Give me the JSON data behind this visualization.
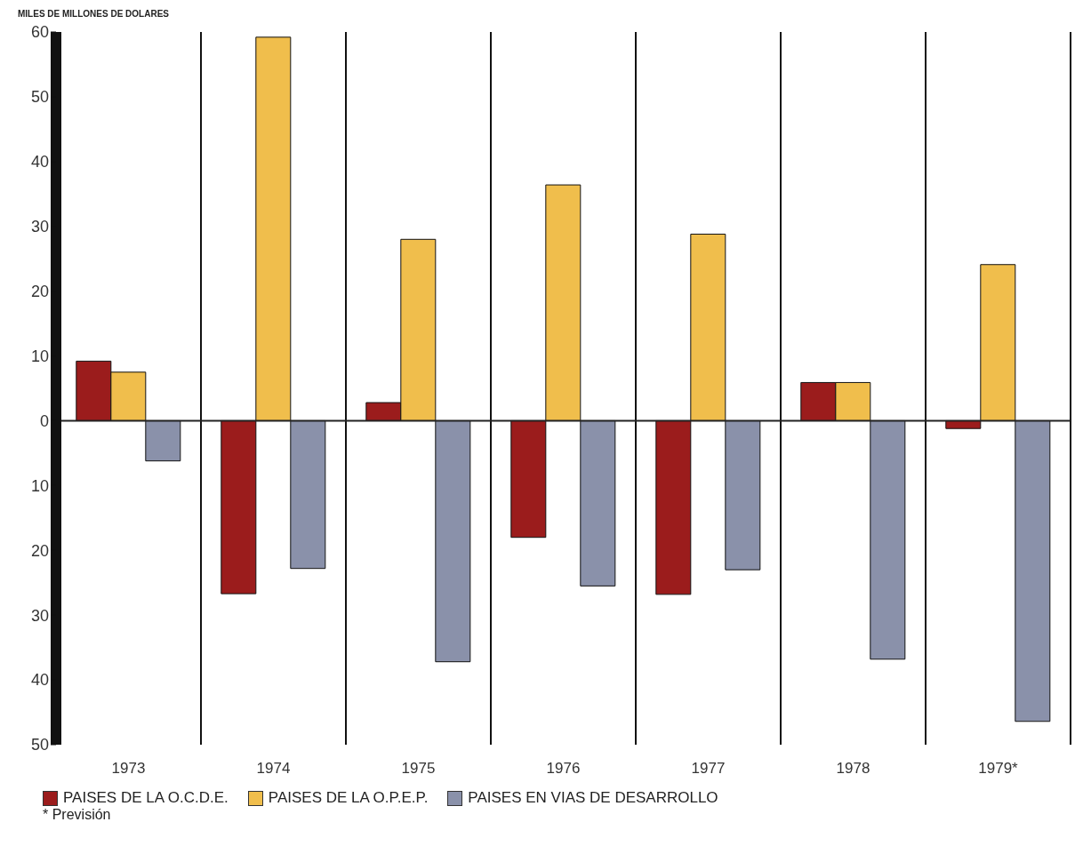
{
  "chart_data": {
    "type": "bar",
    "ylabel": "MILES DE MILLONES DE DOLARES",
    "categories": [
      "1973",
      "1974",
      "1975",
      "1976",
      "1977",
      "1978",
      "1979*"
    ],
    "series": [
      {
        "name": "PAISES DE LA O.C.D.E.",
        "color": "#9b1c1c",
        "values": [
          9.2,
          -26.7,
          2.8,
          -18,
          -26.8,
          5.9,
          -1.2
        ]
      },
      {
        "name": "PAISES DE LA O.P.E.P.",
        "color": "#f0be4c",
        "values": [
          7.5,
          59.2,
          28,
          36.4,
          28.8,
          5.9,
          24.1
        ]
      },
      {
        "name": "PAISES EN VIAS DE DESARROLLO",
        "color": "#8a91aa",
        "values": [
          -6.2,
          -22.8,
          -37.2,
          -25.5,
          -23,
          -36.8,
          -46.4
        ]
      }
    ],
    "ylim": [
      -50,
      60
    ],
    "yticks": [
      {
        "value": -50,
        "label": "50"
      },
      {
        "value": -40,
        "label": "40"
      },
      {
        "value": -30,
        "label": "30"
      },
      {
        "value": -20,
        "label": "20"
      },
      {
        "value": -10,
        "label": "10"
      },
      0,
      10,
      20,
      30,
      40,
      50,
      60
    ],
    "ref_lines": [
      {
        "axis": "y",
        "value": 0,
        "label": null
      }
    ],
    "grid": "x",
    "legend": "bottom",
    "annotations": [
      "* Previsión"
    ]
  }
}
